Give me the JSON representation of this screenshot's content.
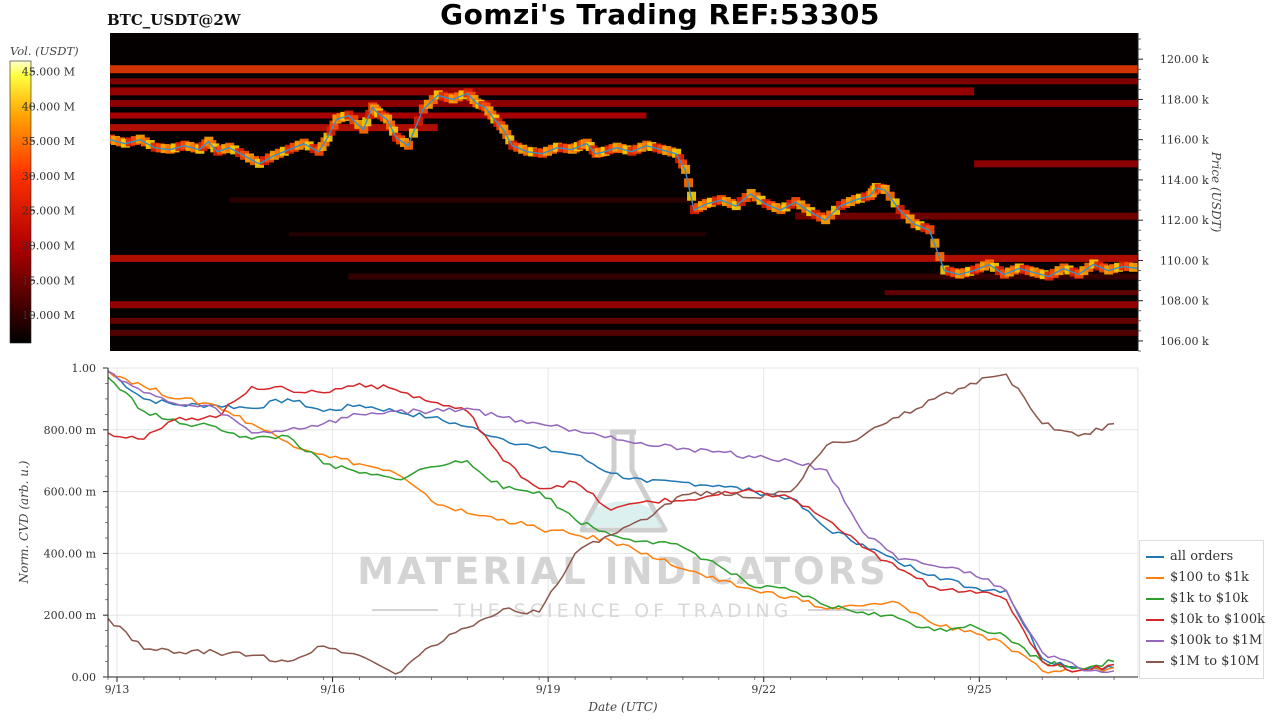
{
  "title": "Gomzi's Trading REF:53305",
  "symbol": "BTC_USDT@2W",
  "watermark": {
    "brand": "MATERIAL INDICATORS",
    "tagline": "THE SCIENCE OF TRADING"
  },
  "chart_data": [
    {
      "type": "heatmap",
      "title": "",
      "ylabel": "Price (USDT)",
      "ylim": [
        105500,
        121300
      ],
      "y_tick_labels": [
        "120.00 k",
        "118.00 k",
        "116.00 k",
        "114.00 k",
        "112.00 k",
        "110.00 k",
        "108.00 k",
        "106.00 k"
      ],
      "y_tick_values": [
        120000,
        118000,
        116000,
        114000,
        112000,
        110000,
        108000,
        106000
      ],
      "colorbar": {
        "label": "Vol. (USDT)",
        "tick_labels": [
          "45.000 M",
          "40.000 M",
          "35.000 M",
          "30.000 M",
          "25.000 M",
          "20.000 M",
          "15.000 M",
          "10.000 M"
        ],
        "tick_values": [
          45,
          40,
          35,
          30,
          25,
          20,
          15,
          10
        ],
        "range": [
          6,
          46.5
        ],
        "colormap": "hot"
      },
      "price_line_color": "#3a8fc8",
      "price_series": {
        "x": [
          0,
          0.5,
          1,
          1.5,
          2,
          2.5,
          3,
          3.3,
          3.6,
          4,
          4.5,
          5,
          5.5,
          6,
          6.5,
          7,
          7.3,
          7.6,
          8,
          8.5,
          8.8,
          9,
          9.3,
          9.6,
          10,
          10.5,
          11,
          11.5,
          12,
          12.3,
          12.6,
          12.9,
          13.2,
          13.5,
          14,
          14.5,
          15,
          15.5,
          15.8,
          16,
          16.3,
          16.6,
          17,
          17.5,
          18,
          18.5,
          19,
          19.3,
          19.6,
          20,
          20.5,
          21,
          21.5,
          22,
          22.5,
          23,
          23.5,
          24,
          24.5,
          25,
          25.5,
          25.7,
          26,
          26.5,
          27,
          27.5,
          28,
          28.5,
          29,
          29.5,
          30,
          30.5,
          31,
          31.5,
          32,
          32.5,
          33,
          33.5,
          34,
          34.5
        ],
        "y": [
          116000,
          115800,
          116000,
          115600,
          115500,
          115700,
          115500,
          115900,
          115400,
          115600,
          115200,
          114800,
          115200,
          115500,
          115800,
          115400,
          116100,
          117000,
          117200,
          116500,
          117600,
          117300,
          117000,
          116100,
          115700,
          117500,
          118200,
          118000,
          118300,
          117800,
          117600,
          117000,
          116500,
          115700,
          115400,
          115300,
          115600,
          115500,
          115700,
          115800,
          115300,
          115400,
          115600,
          115400,
          115700,
          115500,
          115300,
          114500,
          112500,
          112800,
          113000,
          112700,
          113300,
          112800,
          112500,
          112900,
          112400,
          112000,
          112700,
          113000,
          113200,
          113600,
          113500,
          112500,
          111800,
          111500,
          109500,
          109300,
          109500,
          109800,
          109300,
          109600,
          109400,
          109200,
          109600,
          109300,
          109800,
          109500,
          109700,
          109600
        ]
      },
      "x_range_days": [
        0,
        34.5
      ]
    },
    {
      "type": "line",
      "title": "",
      "xlabel": "Date (UTC)",
      "ylabel": "Norm. CVD (arb. u.)",
      "ylim": [
        0,
        1
      ],
      "y_tick_labels": [
        "1.00",
        "800.00 m",
        "600.00 m",
        "400.00 m",
        "200.00 m",
        "0.00"
      ],
      "y_tick_values": [
        1,
        0.8,
        0.6,
        0.4,
        0.2,
        0
      ],
      "x_tick_labels": [
        "9/13",
        "9/16",
        "9/19",
        "9/22",
        "9/25"
      ],
      "x_tick_values": [
        "2025-09-13",
        "2025-09-16",
        "2025-09-19",
        "2025-09-22",
        "2025-09-25"
      ],
      "x": [
        "2025-09-12 21:00",
        "2025-09-13 09:00",
        "2025-09-13 21:00",
        "2025-09-14 09:00",
        "2025-09-14 21:00",
        "2025-09-15 09:00",
        "2025-09-15 21:00",
        "2025-09-16 09:00",
        "2025-09-16 21:00",
        "2025-09-17 09:00",
        "2025-09-17 21:00",
        "2025-09-18 09:00",
        "2025-09-18 21:00",
        "2025-09-19 09:00",
        "2025-09-19 21:00",
        "2025-09-20 09:00",
        "2025-09-20 21:00",
        "2025-09-21 09:00",
        "2025-09-21 21:00",
        "2025-09-22 09:00",
        "2025-09-22 21:00",
        "2025-09-23 09:00",
        "2025-09-23 21:00",
        "2025-09-24 09:00",
        "2025-09-24 21:00",
        "2025-09-25 09:00",
        "2025-09-25 21:00",
        "2025-09-26 09:00",
        "2025-09-26 21:00"
      ],
      "series": [
        {
          "name": "all orders",
          "color": "#1f77b4",
          "values": [
            0.99,
            0.9,
            0.88,
            0.88,
            0.87,
            0.9,
            0.86,
            0.88,
            0.86,
            0.84,
            0.81,
            0.77,
            0.74,
            0.72,
            0.66,
            0.63,
            0.63,
            0.62,
            0.6,
            0.58,
            0.48,
            0.43,
            0.37,
            0.33,
            0.29,
            0.28,
            0.06,
            0.03,
            0.03
          ]
        },
        {
          "name": "$100 to $1k",
          "color": "#ff7f0e",
          "values": [
            0.99,
            0.94,
            0.9,
            0.88,
            0.82,
            0.76,
            0.72,
            0.69,
            0.66,
            0.57,
            0.53,
            0.51,
            0.48,
            0.46,
            0.44,
            0.4,
            0.35,
            0.31,
            0.28,
            0.26,
            0.22,
            0.23,
            0.24,
            0.17,
            0.15,
            0.1,
            0.02,
            0.02,
            0.03
          ]
        },
        {
          "name": "$1k to $10k",
          "color": "#2ca02c",
          "values": [
            0.97,
            0.86,
            0.82,
            0.81,
            0.77,
            0.78,
            0.69,
            0.66,
            0.64,
            0.68,
            0.7,
            0.61,
            0.6,
            0.51,
            0.46,
            0.44,
            0.42,
            0.36,
            0.29,
            0.28,
            0.23,
            0.21,
            0.19,
            0.15,
            0.17,
            0.13,
            0.05,
            0.03,
            0.05
          ]
        },
        {
          "name": "$10k to $100k",
          "color": "#d62728",
          "values": [
            0.79,
            0.77,
            0.84,
            0.84,
            0.94,
            0.93,
            0.92,
            0.95,
            0.93,
            0.89,
            0.86,
            0.7,
            0.61,
            0.63,
            0.54,
            0.57,
            0.57,
            0.59,
            0.6,
            0.58,
            0.51,
            0.42,
            0.35,
            0.29,
            0.28,
            0.25,
            0.05,
            0.02,
            0.04
          ]
        },
        {
          "name": "$100k to $1M",
          "color": "#9467bd",
          "values": [
            0.99,
            0.92,
            0.88,
            0.87,
            0.79,
            0.8,
            0.82,
            0.85,
            0.86,
            0.86,
            0.87,
            0.84,
            0.82,
            0.8,
            0.78,
            0.75,
            0.74,
            0.73,
            0.71,
            0.7,
            0.67,
            0.47,
            0.38,
            0.36,
            0.34,
            0.28,
            0.08,
            0.03,
            0.02
          ]
        },
        {
          "name": "$1M to $10M",
          "color": "#8c564b",
          "values": [
            0.19,
            0.09,
            0.08,
            0.08,
            0.07,
            0.05,
            0.1,
            0.07,
            0.01,
            0.1,
            0.16,
            0.22,
            0.21,
            0.4,
            0.46,
            0.51,
            0.59,
            0.6,
            0.58,
            0.6,
            0.75,
            0.78,
            0.84,
            0.9,
            0.95,
            0.98,
            0.82,
            0.78,
            0.82
          ]
        }
      ],
      "legend_position": "bottom-right outside",
      "grid": true
    }
  ]
}
